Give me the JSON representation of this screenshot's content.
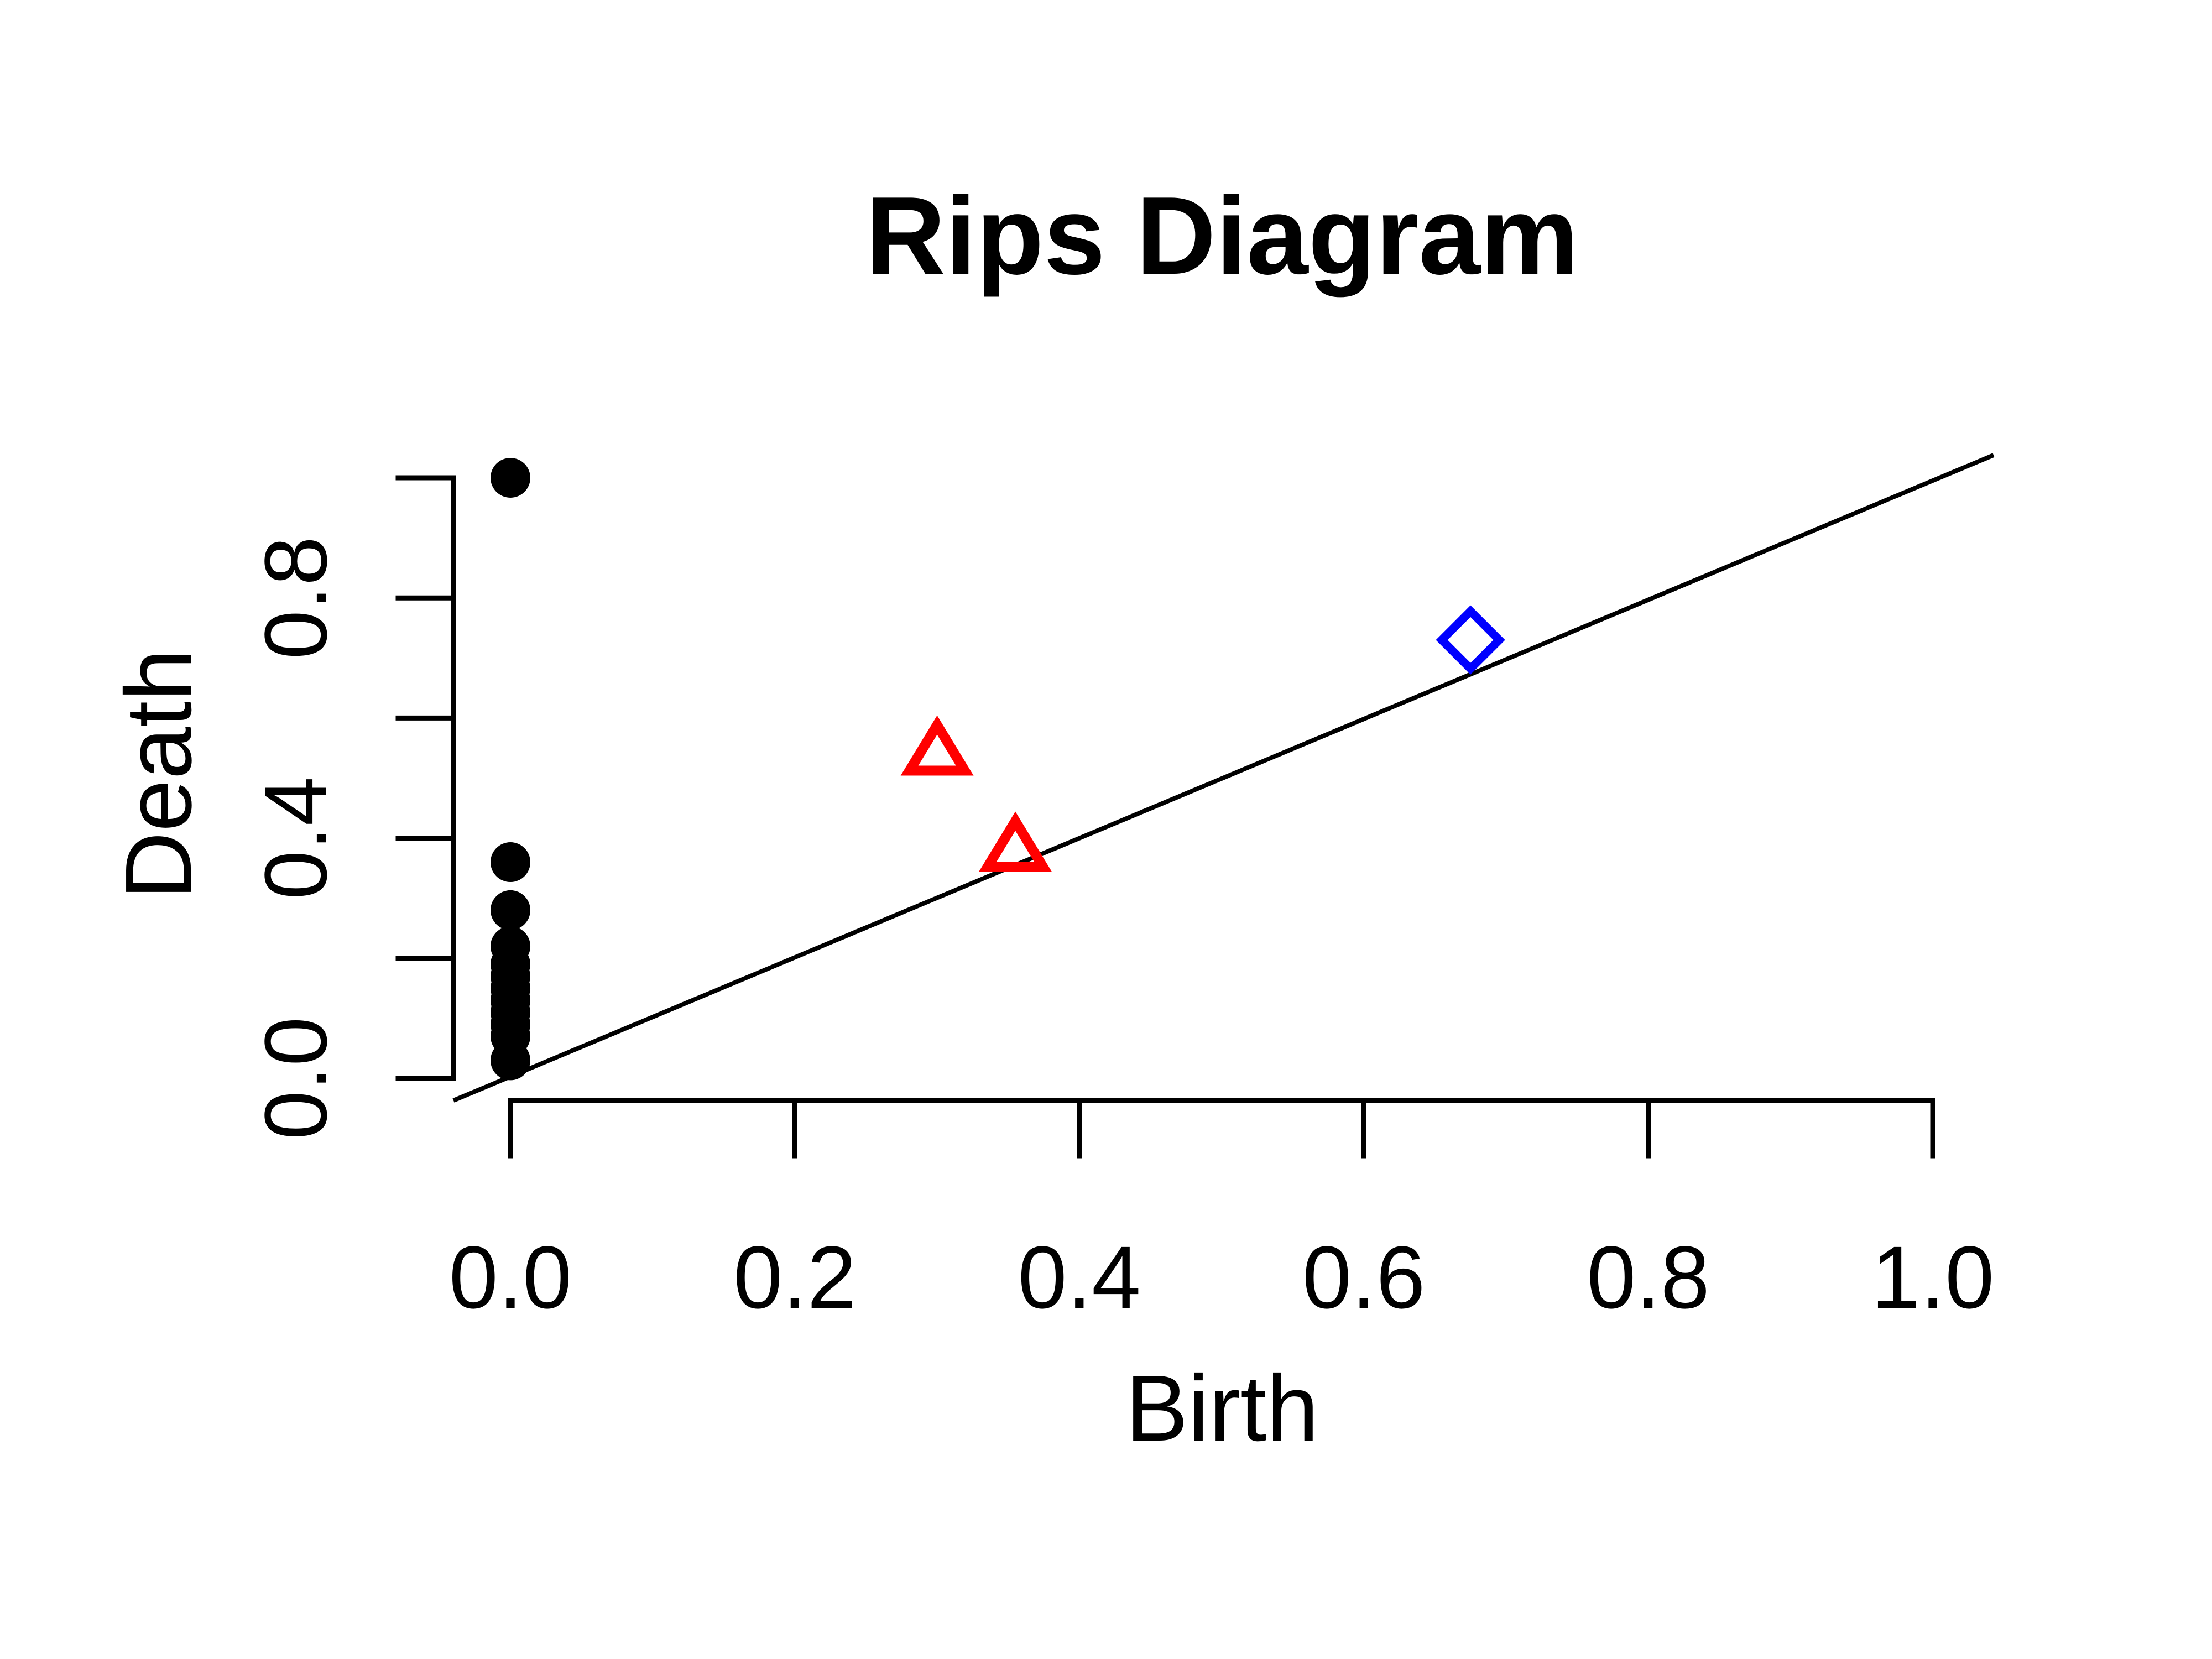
{
  "chart_data": {
    "type": "scatter",
    "title": "Rips Diagram",
    "xlabel": "Birth",
    "ylabel": "Death",
    "xlim": [
      0.0,
      1.0
    ],
    "ylim": [
      0.0,
      1.0
    ],
    "x_ticks": [
      "0.0",
      "0.2",
      "0.4",
      "0.6",
      "0.8",
      "1.0"
    ],
    "y_ticks": [
      "0.0",
      "0.4",
      "0.8"
    ],
    "grid": false,
    "diagonal_line": true,
    "series": [
      {
        "marker": "filled-circle",
        "color": "#000000",
        "points": [
          [
            0.0,
            0.03
          ],
          [
            0.0,
            0.07
          ],
          [
            0.0,
            0.09
          ],
          [
            0.0,
            0.11
          ],
          [
            0.0,
            0.13
          ],
          [
            0.0,
            0.15
          ],
          [
            0.0,
            0.17
          ],
          [
            0.0,
            0.19
          ],
          [
            0.0,
            0.22
          ],
          [
            0.0,
            0.28
          ],
          [
            0.0,
            0.36
          ],
          [
            0.0,
            1.0
          ]
        ]
      },
      {
        "marker": "open-triangle",
        "color": "#ff0000",
        "points": [
          [
            0.3,
            0.54
          ],
          [
            0.355,
            0.38
          ]
        ]
      },
      {
        "marker": "open-diamond",
        "color": "#0000ff",
        "points": [
          [
            0.675,
            0.73
          ]
        ]
      }
    ]
  }
}
